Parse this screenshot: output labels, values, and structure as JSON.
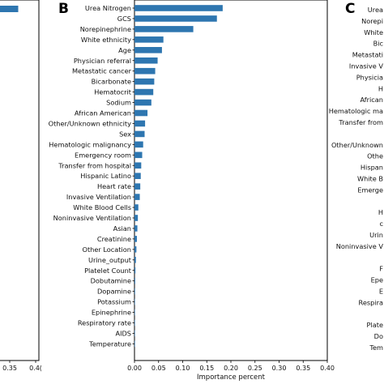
{
  "panel_a": {
    "letter": "",
    "tick_labels": [
      "0.35",
      "0.4("
    ],
    "bar_value": 0.38,
    "xlim": [
      0.0,
      0.4
    ],
    "bar_color": "#2e76b0"
  },
  "panel_b": {
    "letter": "B",
    "bar_color": "#2e76b0"
  },
  "panel_c": {
    "letter": "C",
    "labels": [
      "Urea",
      "Norepi",
      "White",
      "Bic",
      "Metastati",
      "Invasive V",
      "Physicia",
      "H",
      "African",
      "Hematologic ma",
      "Transfer from",
      "",
      "Other/Unknown",
      "Othe",
      "Hispan",
      "White B",
      "Emerge",
      "",
      "H",
      "c",
      "Urin",
      "Noninvasive V",
      "",
      "F",
      "Epe",
      "E",
      "Respira",
      "",
      "Plate",
      "Do",
      "Tem"
    ]
  },
  "chart_data": [
    {
      "panel": "B",
      "type": "bar",
      "orientation": "horizontal",
      "categories": [
        "Urea Nitrogen",
        "GCS",
        "Norepinephrine",
        "White ethnicity",
        "Age",
        "Physician referral",
        "Metastatic cancer",
        "Bicarbonate",
        "Hematocrit",
        "Sodium",
        "African American",
        "Other/Unknown ethnicity",
        "Sex",
        "Hematologic malignancy",
        "Emergency room",
        "Transfer from hospital",
        "Hispanic Latino",
        "Heart rate",
        "Invasive Ventilation",
        "White Blood Cells",
        "Noninvasive Ventilation",
        "Asian",
        "Creatinine",
        "Other Location",
        "Urine_output",
        "Platelet Count",
        "Dobutamine",
        "Dopamine",
        "Potassium",
        "Epinephrine",
        "Respiratory rate",
        "AIDS",
        "Temperature"
      ],
      "values": [
        0.183,
        0.171,
        0.122,
        0.06,
        0.057,
        0.048,
        0.043,
        0.041,
        0.039,
        0.035,
        0.027,
        0.022,
        0.021,
        0.018,
        0.016,
        0.014,
        0.013,
        0.012,
        0.011,
        0.008,
        0.007,
        0.006,
        0.005,
        0.004,
        0.003,
        0.002,
        0.0015,
        0.0012,
        0.001,
        0.0008,
        0.0006,
        0.0004,
        0.0003
      ],
      "xticks": [
        "0.00",
        "0.05",
        "0.10",
        "0.15",
        "0.20",
        "0.25",
        "0.30",
        "0.35",
        "0.40"
      ],
      "xlabel": "Importance percent",
      "ylabel": "",
      "xlim": [
        0.0,
        0.4
      ],
      "color": "#2e76b0"
    }
  ]
}
